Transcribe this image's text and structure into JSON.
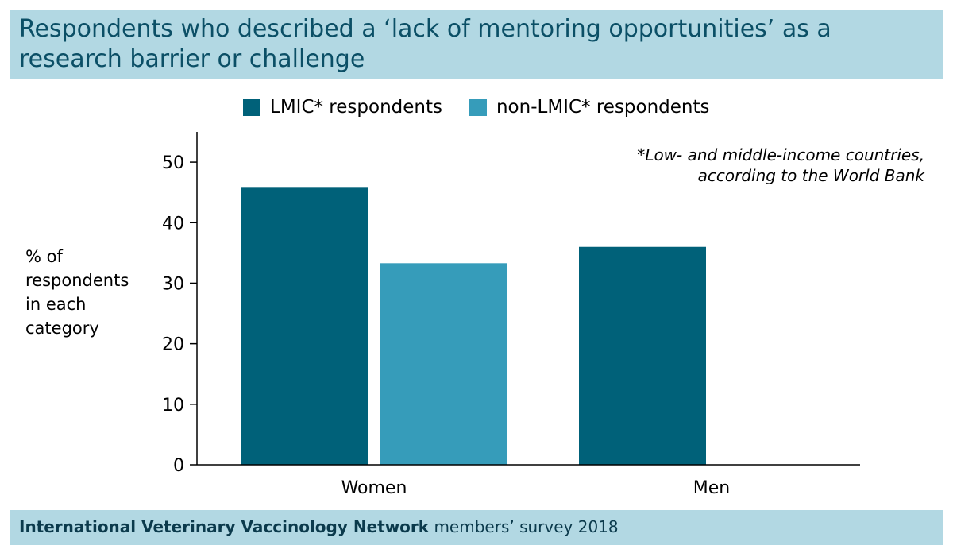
{
  "title": "Respondents who described a ‘lack of mentoring opportunities’ as a research barrier or challenge",
  "footnote_line1": "*Low- and middle-income countries,",
  "footnote_line2": "according to the World Bank",
  "footer": {
    "bold": "International Veterinary Vaccinology Network",
    "rest": " members’ survey 2018"
  },
  "colors": {
    "banner": "#b2d8e3",
    "title_text": "#0b4f66",
    "lmic": "#006179",
    "non_lmic": "#369cba"
  },
  "chart_data": {
    "type": "bar",
    "categories": [
      "Women",
      "Men"
    ],
    "series": [
      {
        "name": "LMIC* respondents",
        "values": [
          45.9,
          36.0
        ],
        "color": "#006179"
      },
      {
        "name": "non-LMIC* respondents",
        "values": [
          33.3,
          null
        ],
        "color": "#369cba"
      }
    ],
    "ylabel_lines": [
      "% of",
      "respondents",
      "in each",
      "category"
    ],
    "ylim": [
      0,
      55
    ],
    "yticks": [
      0,
      10,
      20,
      30,
      40,
      50
    ],
    "legend_position": "top",
    "grid": false
  }
}
